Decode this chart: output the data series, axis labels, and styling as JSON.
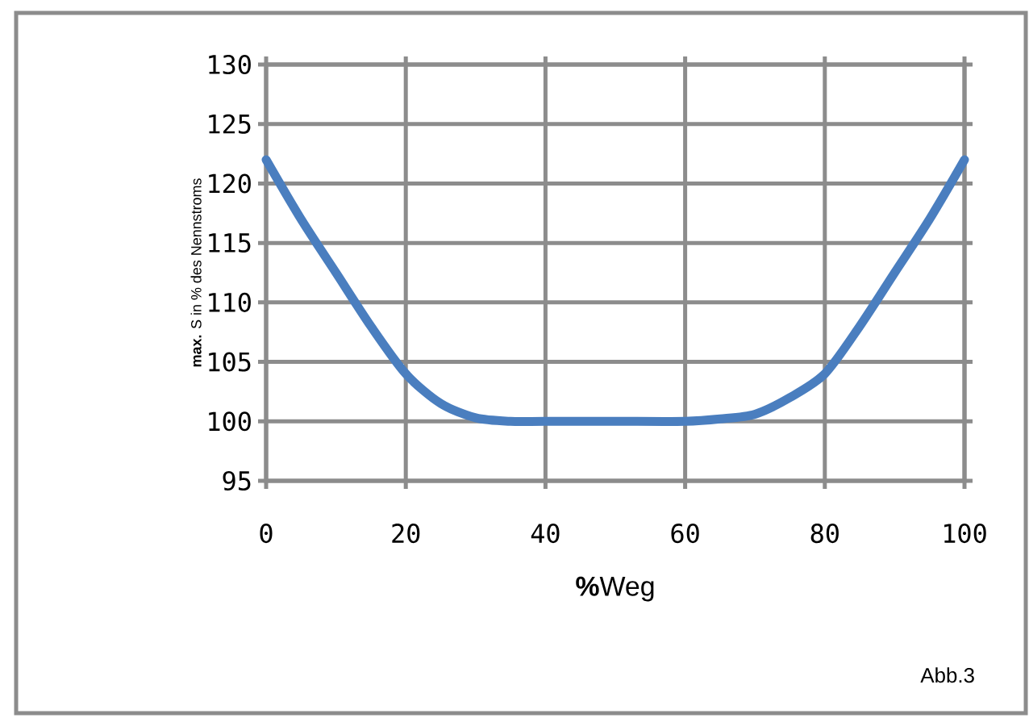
{
  "chart_data": {
    "type": "line",
    "xlabel": "**%**Weg",
    "ylabel": "**max.** S in % des Nennstroms",
    "annotations": [
      "Abb.3"
    ],
    "x": [
      0,
      5,
      10,
      15,
      20,
      25,
      30,
      35,
      40,
      50,
      60,
      65,
      70,
      75,
      80,
      85,
      90,
      95,
      100
    ],
    "series": [
      {
        "color": "#4a7ebf",
        "values": [
          122,
          117,
          112.5,
          108,
          104,
          101.5,
          100.3,
          100,
          100,
          100,
          100,
          100.2,
          100.6,
          102,
          104,
          108,
          112.5,
          117,
          122
        ]
      }
    ],
    "xlim": [
      0,
      100
    ],
    "ylim": [
      95,
      130
    ],
    "xticks": [
      0,
      20,
      40,
      60,
      80,
      100
    ],
    "yticks": [
      95,
      100,
      105,
      110,
      115,
      120,
      125,
      130
    ],
    "grid": true,
    "marker": "none",
    "line_style": "solid"
  }
}
